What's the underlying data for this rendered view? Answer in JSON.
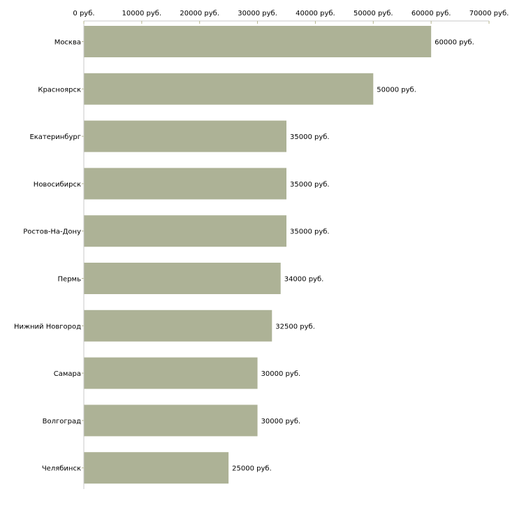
{
  "chart_data": {
    "type": "bar",
    "orientation": "horizontal",
    "title": "",
    "xlabel": "",
    "ylabel": "",
    "xlim": [
      0,
      70000
    ],
    "x_ticks": [
      0,
      10000,
      20000,
      30000,
      40000,
      50000,
      60000,
      70000
    ],
    "unit_suffix": " руб.",
    "axis_position": "top",
    "grid": false,
    "bar_color": "#adb296",
    "axis_color": "#c8c8c8",
    "tick_color": "#b4b48c",
    "categories": [
      "Москва",
      "Красноярск",
      "Екатеринбург",
      "Новосибирск",
      "Ростов-На-Дону",
      "Пермь",
      "Нижний Новгород",
      "Самара",
      "Волгоград",
      "Челябинск"
    ],
    "values": [
      60000,
      50000,
      35000,
      35000,
      35000,
      34000,
      32500,
      30000,
      30000,
      25000
    ],
    "data_labels": [
      "60000 руб.",
      "50000 руб.",
      "35000 руб.",
      "35000 руб.",
      "35000 руб.",
      "34000 руб.",
      "32500 руб.",
      "30000 руб.",
      "30000 руб.",
      "25000 руб."
    ],
    "tick_labels": [
      "0 руб.",
      "10000 руб.",
      "20000 руб.",
      "30000 руб.",
      "40000 руб.",
      "50000 руб.",
      "60000 руб.",
      "70000 руб."
    ]
  }
}
